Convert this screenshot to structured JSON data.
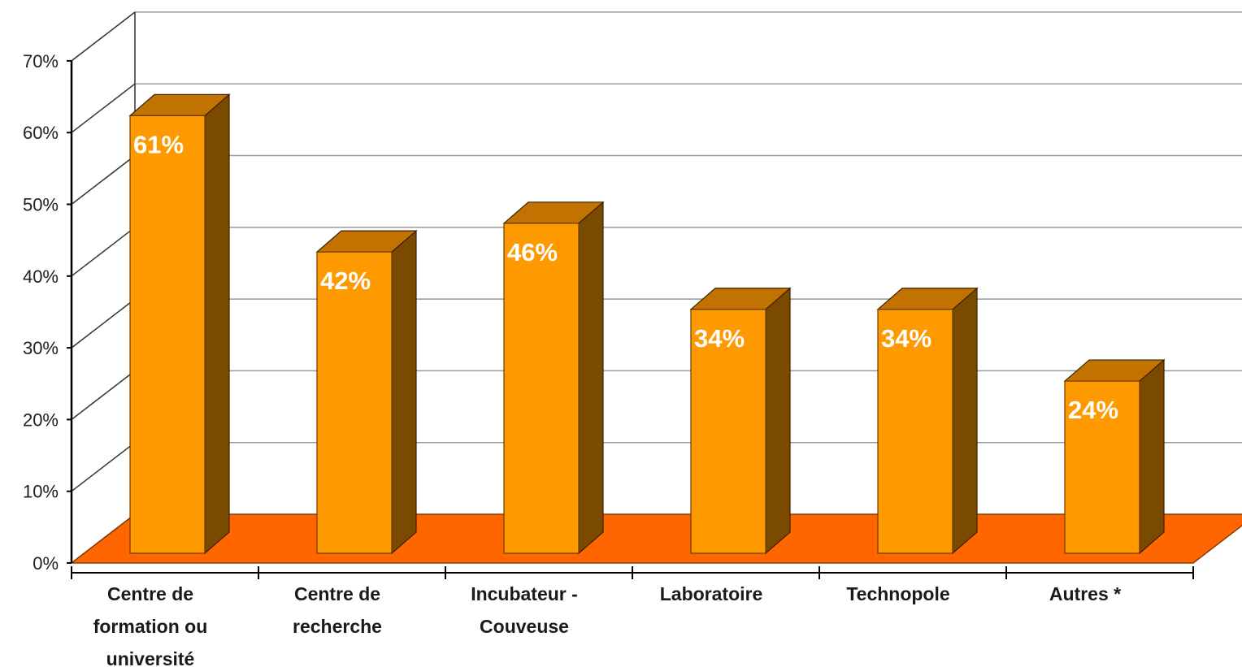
{
  "chart_data": {
    "type": "bar",
    "categories": [
      [
        "Centre de",
        "formation ou",
        "université"
      ],
      [
        "Centre de",
        "recherche"
      ],
      [
        "Incubateur -",
        "Couveuse"
      ],
      [
        "Laboratoire"
      ],
      [
        "Technopole"
      ],
      [
        "Autres  *"
      ]
    ],
    "values": [
      61,
      42,
      46,
      34,
      34,
      24
    ],
    "value_labels": [
      "61%",
      "42%",
      "46%",
      "34%",
      "34%",
      "24%"
    ],
    "y_ticks": [
      "0%",
      "10%",
      "20%",
      "30%",
      "40%",
      "50%",
      "60%",
      "70%"
    ],
    "ylim": [
      0,
      70
    ],
    "title": "",
    "xlabel": "",
    "ylabel": "",
    "grid": true,
    "legend": "none",
    "style": "3d-column",
    "colors": {
      "bar_front": "#FF9900",
      "bar_top": "#C27200",
      "bar_side": "#7A4A00",
      "floor": "#FF6600",
      "gridline": "#999999",
      "value_text": "#FFFFFF"
    }
  }
}
